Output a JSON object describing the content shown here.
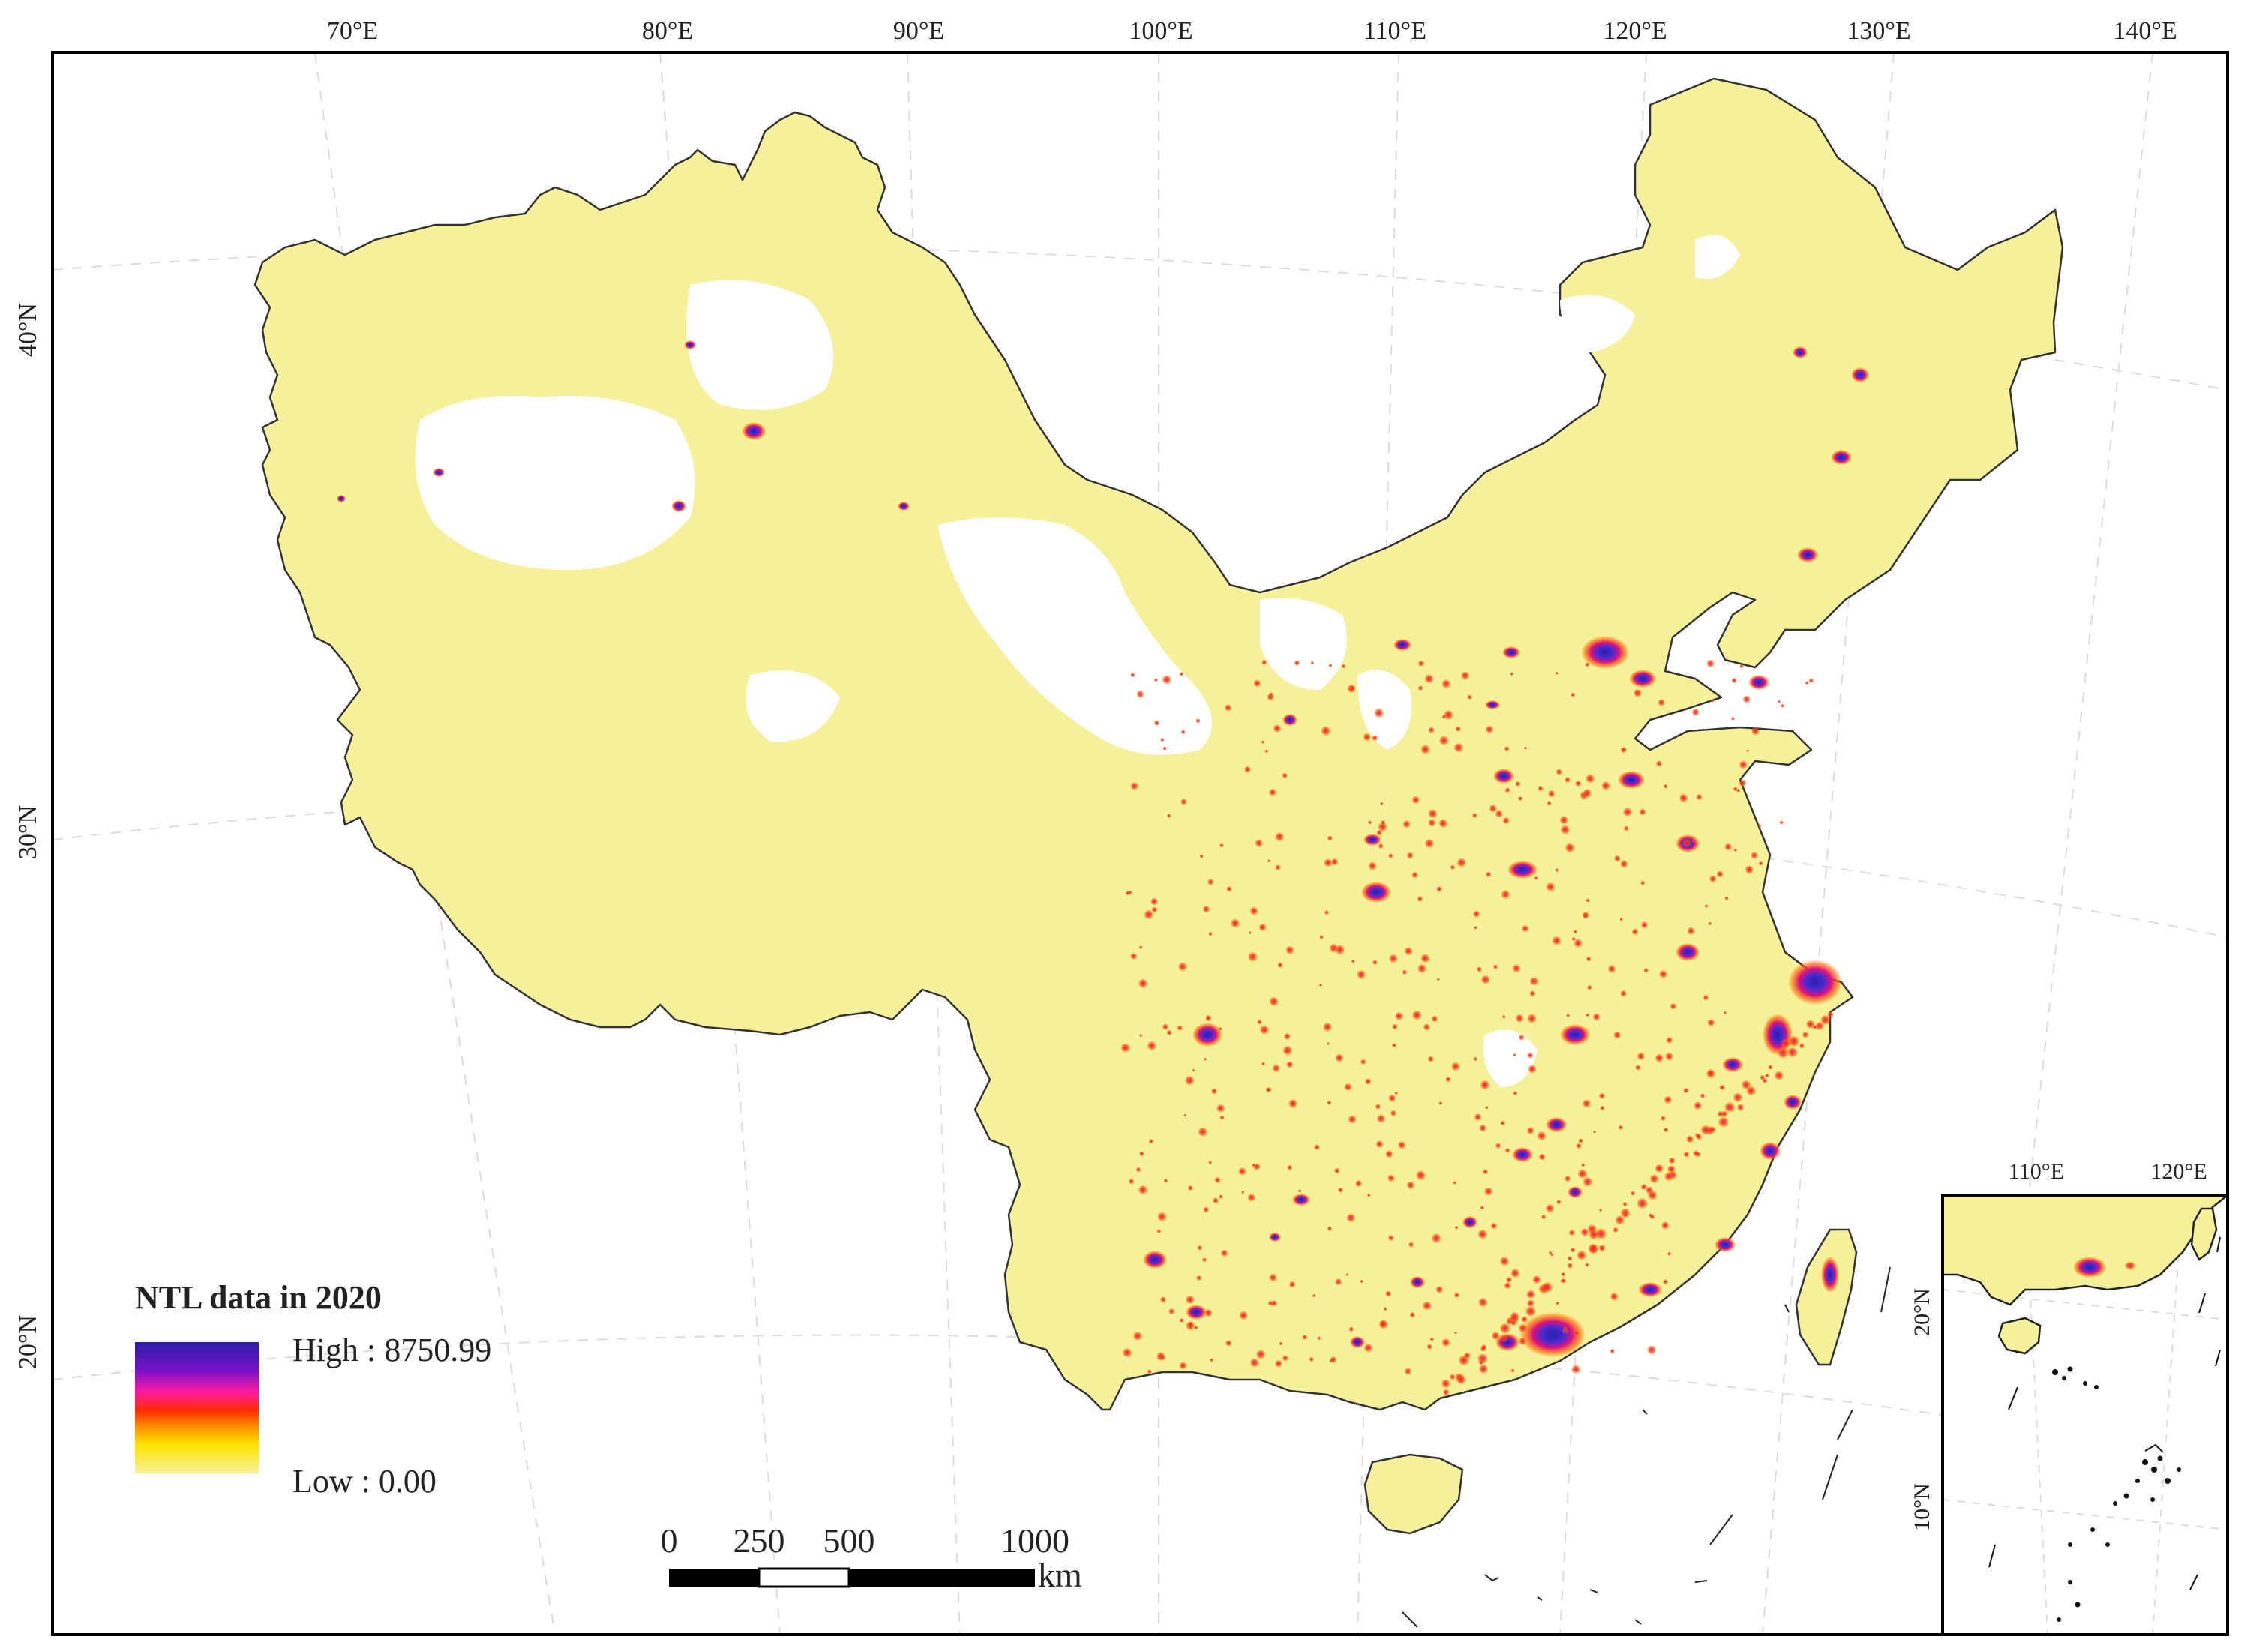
{
  "map": {
    "top_axis_labels": [
      "70°E",
      "80°E",
      "90°E",
      "100°E",
      "110°E",
      "120°E",
      "130°E",
      "140°E"
    ],
    "left_axis_labels": [
      "40°N",
      "30°N",
      "20°N"
    ],
    "colors": {
      "land": "#f5f09a",
      "coast_line": "#333333",
      "frame": "#000000",
      "city_glow_high": "#2a1ea8",
      "city_glow_mid": "#e0127a",
      "city_glow_low": "#ff6a00"
    }
  },
  "legend": {
    "title": "NTL data in 2020",
    "high_label": "High : 8750.99",
    "low_label": "Low : 0.00",
    "ramp_colors": [
      "#2a1ea8",
      "#c000c0",
      "#ff1aa0",
      "#ff2a00",
      "#ff8c00",
      "#ffe400",
      "#f5f09a"
    ]
  },
  "scale_bar": {
    "ticks": [
      "0",
      "250",
      "500",
      "1000"
    ],
    "unit": "km"
  },
  "inset": {
    "top_labels": [
      "110°E",
      "120°E"
    ],
    "left_labels": [
      "20°N",
      "10°N"
    ]
  }
}
